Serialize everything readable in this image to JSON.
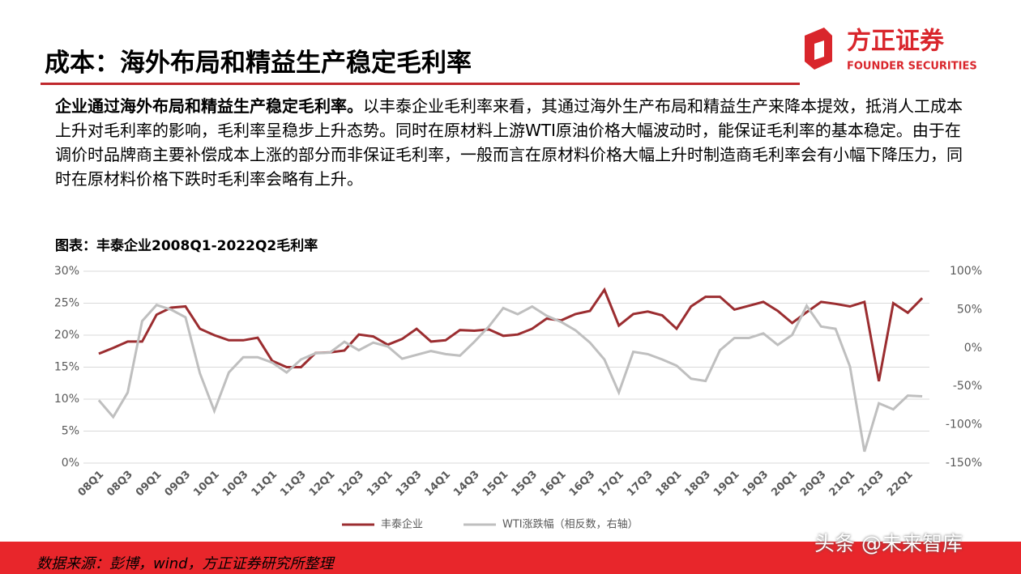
{
  "header": {
    "title": "成本：海外布局和精益生产稳定毛利率",
    "logo_cn": "方正证券",
    "logo_en": "FOUNDER SECURITIES"
  },
  "paragraph": {
    "lead": "企业通过海外布局和精益生产稳定毛利率。",
    "body": "以丰泰企业毛利率来看，其通过海外生产布局和精益生产来降本提效，抵消人工成本上升对毛利率的影响，毛利率呈稳步上升态势。同时在原材料上游WTI原油价格大幅波动时，能保证毛利率的基本稳定。由于在调价时品牌商主要补偿成本上涨的部分而非保证毛利率，一般而言在原材料价格大幅上升时制造商毛利率会有小幅下降压力，同时在原材料价格下跌时毛利率会略有上升。"
  },
  "chart_data": {
    "type": "line",
    "title": "图表：丰泰企业2008Q1-2022Q2毛利率",
    "categories": [
      "08Q1",
      null,
      "08Q3",
      null,
      "09Q1",
      null,
      "09Q3",
      null,
      "10Q1",
      null,
      "10Q3",
      null,
      "11Q1",
      null,
      "11Q3",
      null,
      "12Q1",
      null,
      "12Q3",
      null,
      "13Q1",
      null,
      "13Q3",
      null,
      "14Q1",
      null,
      "14Q3",
      null,
      "15Q1",
      null,
      "15Q3",
      null,
      "16Q1",
      null,
      "16Q3",
      null,
      "17Q1",
      null,
      "17Q3",
      null,
      "18Q1",
      null,
      "18Q3",
      null,
      "19Q1",
      null,
      "19Q3",
      null,
      "20Q1",
      null,
      "20Q3",
      null,
      "21Q1",
      null,
      "21Q3",
      null,
      "22Q1",
      null
    ],
    "series": [
      {
        "name": "丰泰企业",
        "color": "#9b2d30",
        "values": [
          17.1,
          18,
          19,
          19,
          23.2,
          24.3,
          24.5,
          21,
          20,
          19.2,
          19.2,
          19.6,
          16,
          15,
          15,
          17.2,
          17.3,
          17.6,
          20.1,
          19.8,
          18.5,
          19.4,
          21,
          19,
          19.2,
          20.8,
          20.7,
          20.9,
          19.9,
          20.1,
          21,
          22.6,
          22.3,
          23.3,
          23.8,
          27.1,
          21.5,
          23.3,
          23.7,
          23.1,
          21,
          24.5,
          26,
          26,
          24,
          24.6,
          25.2,
          23.8,
          21.9,
          23.6,
          25.2,
          24.9,
          24.5,
          25.2,
          12.8,
          25,
          23.5,
          25.8
        ]
      },
      {
        "name": "WTI涨跌幅（相反数，右轴）",
        "color": "#bfbfbf",
        "axis": "y2",
        "values": [
          -68,
          -90,
          -58,
          35,
          56,
          50,
          40,
          -33,
          -82,
          -32,
          -12,
          -12,
          -19,
          -32,
          -15,
          -7,
          -6,
          8,
          -3,
          7,
          2,
          -14,
          -9,
          -4,
          -8,
          -10,
          8,
          28,
          52,
          44,
          54,
          42,
          34,
          23,
          7,
          -15,
          -58,
          -5,
          -8,
          -15,
          -23,
          -40,
          -43,
          -3,
          13,
          13,
          19,
          4,
          17,
          55,
          28,
          25,
          -24,
          -135,
          -72,
          -80,
          -62,
          -63
        ]
      }
    ],
    "ylim": [
      0,
      30
    ],
    "yticks": [
      {
        "value": 0,
        "label": "0%"
      },
      {
        "value": 5,
        "label": "5%"
      },
      {
        "value": 10,
        "label": "10%"
      },
      {
        "value": 15,
        "label": "15%"
      },
      {
        "value": 20,
        "label": "20%"
      },
      {
        "value": 25,
        "label": "25%"
      },
      {
        "value": 30,
        "label": "30%"
      }
    ],
    "y2lim": [
      -150,
      100
    ],
    "y2ticks": [
      {
        "value": -150,
        "label": "-150%"
      },
      {
        "value": -100,
        "label": "-100%"
      },
      {
        "value": -50,
        "label": "-50%"
      },
      {
        "value": 0,
        "label": "0%"
      },
      {
        "value": 50,
        "label": "50%"
      },
      {
        "value": 100,
        "label": "100%"
      }
    ],
    "grid": true,
    "legend": "bottom"
  },
  "source": "数据来源：彭博，wind，方正证券研究所整理",
  "watermark": "头条 @未来智库"
}
